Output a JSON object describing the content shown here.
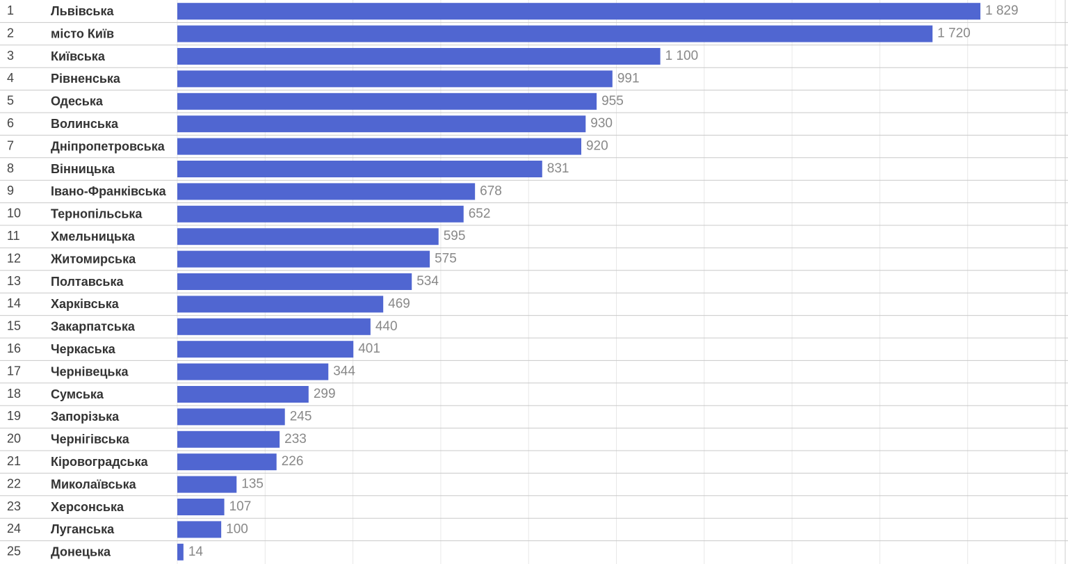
{
  "chart_data": {
    "type": "bar",
    "orientation": "horizontal",
    "ranks": [
      1,
      2,
      3,
      4,
      5,
      6,
      7,
      8,
      9,
      10,
      11,
      12,
      13,
      14,
      15,
      16,
      17,
      18,
      19,
      20,
      21,
      22,
      23,
      24,
      25
    ],
    "categories": [
      "Львівська",
      "місто Київ",
      "Київська",
      "Рівненська",
      "Одеська",
      "Волинська",
      "Дніпропетровська",
      "Вінницька",
      "Івано-Франківська",
      "Тернопільська",
      "Хмельницька",
      "Житомирська",
      "Полтавська",
      "Харківська",
      "Закарпатська",
      "Черкаська",
      "Чернівецька",
      "Сумська",
      "Запорізька",
      "Чернігівська",
      "Кіровоградська",
      "Миколаївська",
      "Херсонська",
      "Луганська",
      "Донецька"
    ],
    "values": [
      1829,
      1720,
      1100,
      991,
      955,
      930,
      920,
      831,
      678,
      652,
      595,
      575,
      534,
      469,
      440,
      401,
      344,
      299,
      245,
      233,
      226,
      135,
      107,
      100,
      14
    ],
    "value_labels": [
      "1 829",
      "1 720",
      "1 100",
      "991",
      "955",
      "930",
      "920",
      "831",
      "678",
      "652",
      "595",
      "575",
      "534",
      "469",
      "440",
      "401",
      "344",
      "299",
      "245",
      "233",
      "226",
      "135",
      "107",
      "100",
      "14"
    ],
    "color": "#5066d1",
    "xlim": [
      0,
      2000
    ],
    "xticks": [
      0,
      200,
      400,
      600,
      800,
      1000,
      1200,
      1400,
      1600,
      1800,
      2000
    ],
    "xtick_labels": false,
    "grid": true
  }
}
